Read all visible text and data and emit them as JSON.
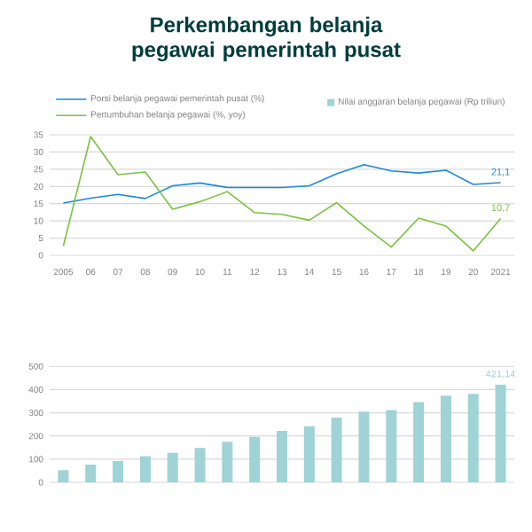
{
  "chart_data": [
    {
      "type": "line",
      "title": "Perkembangan belanja pegawai pemerintah pusat",
      "categories": [
        "2005",
        "06",
        "07",
        "08",
        "09",
        "10",
        "11",
        "12",
        "13",
        "14",
        "15",
        "16",
        "17",
        "18",
        "19",
        "20",
        "2021"
      ],
      "series": [
        {
          "name": "Porsi belanja pegawai pemerintah pusat (%)",
          "color": "#1e88d8",
          "values": [
            15.2,
            16.6,
            17.7,
            16.5,
            20.2,
            21.0,
            19.7,
            19.7,
            19.7,
            20.2,
            23.7,
            26.3,
            24.5,
            23.9,
            24.7,
            20.6,
            21.1
          ],
          "value_labels": [
            null,
            null,
            null,
            null,
            null,
            null,
            null,
            null,
            null,
            null,
            null,
            null,
            null,
            null,
            null,
            null,
            "21,1"
          ]
        },
        {
          "name": "Pertumbuhan belanja pegawai (%, yoy)",
          "color": "#7cc142",
          "values": [
            2.7,
            34.5,
            23.4,
            24.2,
            13.4,
            15.6,
            18.5,
            12.4,
            11.9,
            10.2,
            15.3,
            8.5,
            2.4,
            10.8,
            8.5,
            1.3,
            10.7
          ],
          "value_labels": [
            null,
            null,
            null,
            null,
            null,
            null,
            null,
            null,
            null,
            null,
            null,
            null,
            null,
            null,
            null,
            null,
            "10,7"
          ]
        }
      ],
      "ylim": [
        0,
        35
      ],
      "yticks": [
        0,
        5,
        10,
        15,
        20,
        25,
        30,
        35
      ],
      "grid": "y",
      "legend": "top",
      "marker": "none",
      "line_style": "solid"
    },
    {
      "type": "bar",
      "categories": [
        "2005",
        "06",
        "07",
        "08",
        "09",
        "10",
        "11",
        "12",
        "13",
        "14",
        "15",
        "16",
        "17",
        "18",
        "19",
        "20",
        "2021"
      ],
      "series": [
        {
          "name": "Nilai anggaran belanja pegawai (Rp triliun)",
          "color": "#9fd3d6",
          "values": [
            53,
            76,
            92,
            113,
            127,
            148,
            175,
            196,
            222,
            242,
            279,
            305,
            312,
            346,
            374,
            381,
            421.14
          ],
          "value_labels": [
            null,
            null,
            null,
            null,
            null,
            null,
            null,
            null,
            null,
            null,
            null,
            null,
            null,
            null,
            null,
            null,
            "421,14"
          ]
        }
      ],
      "ylim": [
        0,
        520
      ],
      "yticks": [
        0,
        100,
        200,
        300,
        400,
        500
      ],
      "grid": "y",
      "legend": "top right",
      "tick_labels": "y"
    }
  ]
}
